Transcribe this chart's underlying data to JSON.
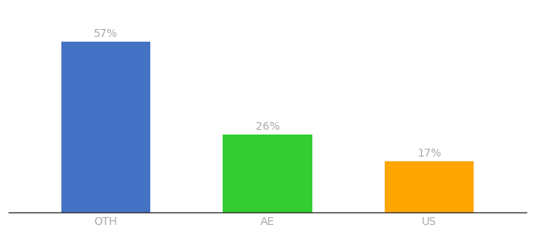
{
  "categories": [
    "OTH",
    "AE",
    "US"
  ],
  "values": [
    57,
    26,
    17
  ],
  "bar_colors": [
    "#4472C4",
    "#33CC33",
    "#FFA500"
  ],
  "label_texts": [
    "57%",
    "26%",
    "17%"
  ],
  "label_color": "#aaaaaa",
  "background_color": "#ffffff",
  "ylim": [
    0,
    68
  ],
  "bar_width": 0.55,
  "label_fontsize": 10,
  "tick_fontsize": 10,
  "tick_color": "#aaaaaa",
  "x_positions": [
    1,
    2,
    3
  ]
}
